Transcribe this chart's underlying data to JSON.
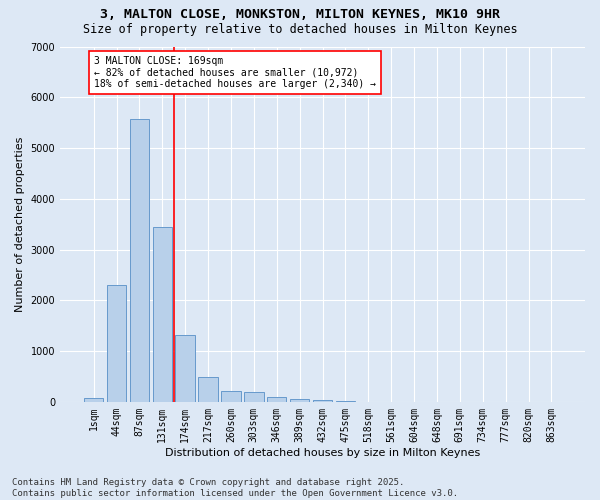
{
  "title_line1": "3, MALTON CLOSE, MONKSTON, MILTON KEYNES, MK10 9HR",
  "title_line2": "Size of property relative to detached houses in Milton Keynes",
  "xlabel": "Distribution of detached houses by size in Milton Keynes",
  "ylabel": "Number of detached properties",
  "bar_labels": [
    "1sqm",
    "44sqm",
    "87sqm",
    "131sqm",
    "174sqm",
    "217sqm",
    "260sqm",
    "303sqm",
    "346sqm",
    "389sqm",
    "432sqm",
    "475sqm",
    "518sqm",
    "561sqm",
    "604sqm",
    "648sqm",
    "691sqm",
    "734sqm",
    "777sqm",
    "820sqm",
    "863sqm"
  ],
  "bar_values": [
    80,
    2300,
    5580,
    3450,
    1320,
    480,
    210,
    185,
    95,
    50,
    35,
    20,
    5,
    3,
    2,
    1,
    0,
    0,
    0,
    0,
    0
  ],
  "bar_color": "#b8d0ea",
  "bar_edgecolor": "#6699cc",
  "background_color": "#dde8f5",
  "grid_color": "#ffffff",
  "vline_x": 3.5,
  "vline_color": "red",
  "ylim": [
    0,
    7000
  ],
  "yticks": [
    0,
    1000,
    2000,
    3000,
    4000,
    5000,
    6000,
    7000
  ],
  "annotation_text": "3 MALTON CLOSE: 169sqm\n← 82% of detached houses are smaller (10,972)\n18% of semi-detached houses are larger (2,340) →",
  "annotation_box_facecolor": "white",
  "annotation_box_edgecolor": "red",
  "footer_text": "Contains HM Land Registry data © Crown copyright and database right 2025.\nContains public sector information licensed under the Open Government Licence v3.0.",
  "title_fontsize": 9.5,
  "subtitle_fontsize": 8.5,
  "axis_label_fontsize": 8,
  "tick_fontsize": 7,
  "annotation_fontsize": 7,
  "footer_fontsize": 6.5,
  "ylabel_fontsize": 8
}
